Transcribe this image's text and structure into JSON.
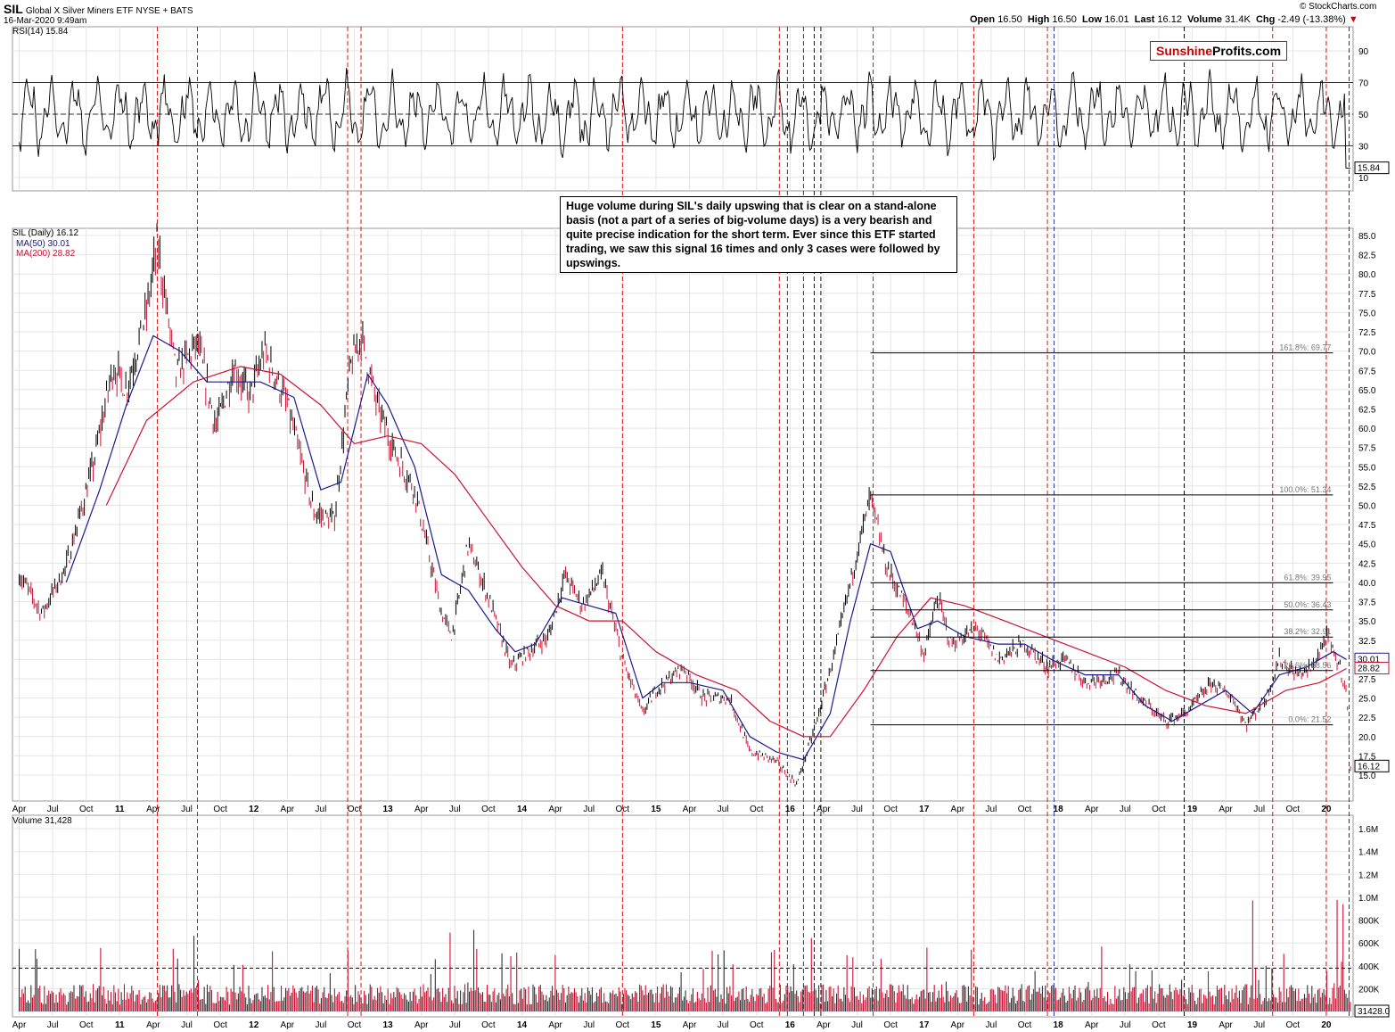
{
  "header": {
    "symbol": "SIL",
    "name": "Global X Silver Miners ETF",
    "exchange": "NYSE + BATS",
    "date": "16-Mar-2020 9:49am",
    "copyright": "© StockCharts.com",
    "quote": {
      "open_label": "Open",
      "open": "16.50",
      "high_label": "High",
      "high": "16.50",
      "low_label": "Low",
      "low": "16.01",
      "last_label": "Last",
      "last": "16.12",
      "volume_label": "Volume",
      "volume": "31.4K",
      "chg_label": "Chg",
      "chg": "-2.49 (-13.38%)"
    }
  },
  "brand": {
    "part1": "Sunshine",
    "part2": "Profits.com"
  },
  "annotation": "Huge volume during SIL's daily upswing that is clear on a stand-alone basis (not a part of a series of big-volume days) is a very bearish and quite precise indication for the short term. Ever since this ETF started trading, we saw this signal 16 times and only 3 cases were followed by upswings.",
  "colors": {
    "price": "#000000",
    "ma50": "#1a1a8c",
    "ma200": "#cc1133",
    "volume": "#cc1133",
    "signal_red": "#cc0000",
    "signal_blue": "#1a1a8c",
    "signal_black": "#000000",
    "grid": "#e4e4e4"
  },
  "chart_data": [
    {
      "type": "line",
      "title": "RSI(14) 15.84",
      "series": [
        {
          "name": "RSI(14)",
          "last": 15.84
        }
      ],
      "y_ticks": [
        90,
        70,
        50,
        30,
        10
      ],
      "reference_lines": [
        70,
        50,
        30
      ],
      "last_value_label": "15.84"
    },
    {
      "type": "line",
      "title": "SIL (Daily) 16.12",
      "series": [
        {
          "name": "SIL (Daily)",
          "last": 16.12
        },
        {
          "name": "MA(50)",
          "last": 30.01,
          "label": "MA(50) 30.01"
        },
        {
          "name": "MA(200)",
          "last": 28.82,
          "label": "MA(200) 28.82"
        }
      ],
      "x_ticks": [
        "Apr",
        "Jul",
        "Oct",
        "11",
        "Apr",
        "Jul",
        "Oct",
        "12",
        "Apr",
        "Jul",
        "Oct",
        "13",
        "Apr",
        "Jul",
        "Oct",
        "14",
        "Apr",
        "Jul",
        "Oct",
        "15",
        "Apr",
        "Jul",
        "Oct",
        "16",
        "Apr",
        "Jul",
        "Oct",
        "17",
        "Apr",
        "Jul",
        "Oct",
        "18",
        "Apr",
        "Jul",
        "Oct",
        "19",
        "Apr",
        "Jul",
        "Oct",
        "20"
      ],
      "y_ticks": [
        "85.0",
        "82.5",
        "80.0",
        "77.5",
        "75.0",
        "72.5",
        "70.0",
        "67.5",
        "65.0",
        "62.5",
        "60.0",
        "57.5",
        "55.0",
        "52.5",
        "50.0",
        "47.5",
        "45.0",
        "42.5",
        "40.0",
        "37.5",
        "35.0",
        "32.5",
        "30.0",
        "27.5",
        "25.0",
        "22.5",
        "20.0",
        "17.5",
        "15.0"
      ],
      "price_path": [
        [
          2010.25,
          41
        ],
        [
          2010.42,
          36
        ],
        [
          2010.6,
          42
        ],
        [
          2010.8,
          55
        ],
        [
          2010.95,
          68
        ],
        [
          2011.05,
          65
        ],
        [
          2011.2,
          75
        ],
        [
          2011.28,
          84
        ],
        [
          2011.42,
          67
        ],
        [
          2011.58,
          71
        ],
        [
          2011.72,
          60
        ],
        [
          2011.85,
          68
        ],
        [
          2011.97,
          64
        ],
        [
          2012.08,
          70
        ],
        [
          2012.25,
          63
        ],
        [
          2012.45,
          49
        ],
        [
          2012.6,
          48
        ],
        [
          2012.72,
          68
        ],
        [
          2012.8,
          72
        ],
        [
          2012.92,
          63
        ],
        [
          2013.05,
          57
        ],
        [
          2013.2,
          52
        ],
        [
          2013.4,
          36
        ],
        [
          2013.48,
          33
        ],
        [
          2013.6,
          45
        ],
        [
          2013.75,
          38
        ],
        [
          2013.92,
          29
        ],
        [
          2014.05,
          31
        ],
        [
          2014.2,
          33
        ],
        [
          2014.32,
          41
        ],
        [
          2014.45,
          37
        ],
        [
          2014.6,
          41
        ],
        [
          2014.75,
          30
        ],
        [
          2014.9,
          23
        ],
        [
          2015.0,
          26
        ],
        [
          2015.2,
          29
        ],
        [
          2015.35,
          25
        ],
        [
          2015.55,
          25
        ],
        [
          2015.7,
          18
        ],
        [
          2015.88,
          17
        ],
        [
          2016.05,
          13.8
        ],
        [
          2016.2,
          22
        ],
        [
          2016.35,
          32
        ],
        [
          2016.5,
          44
        ],
        [
          2016.6,
          51
        ],
        [
          2016.72,
          42
        ],
        [
          2016.92,
          35
        ],
        [
          2017.0,
          30.5
        ],
        [
          2017.1,
          38
        ],
        [
          2017.2,
          32
        ],
        [
          2017.4,
          34
        ],
        [
          2017.55,
          30
        ],
        [
          2017.75,
          32
        ],
        [
          2017.92,
          29
        ],
        [
          2018.05,
          30
        ],
        [
          2018.2,
          27
        ],
        [
          2018.45,
          28
        ],
        [
          2018.6,
          25
        ],
        [
          2018.8,
          22
        ],
        [
          2018.95,
          23
        ],
        [
          2019.15,
          27
        ],
        [
          2019.3,
          25
        ],
        [
          2019.4,
          21.5
        ],
        [
          2019.55,
          25
        ],
        [
          2019.65,
          30
        ],
        [
          2019.78,
          28
        ],
        [
          2019.9,
          29
        ],
        [
          2020.0,
          33
        ],
        [
          2020.1,
          29
        ],
        [
          2020.15,
          26
        ],
        [
          2020.18,
          16.12
        ]
      ],
      "ma50_path": [
        [
          2010.6,
          40
        ],
        [
          2010.85,
          52
        ],
        [
          2011.05,
          63
        ],
        [
          2011.25,
          72
        ],
        [
          2011.45,
          70
        ],
        [
          2011.65,
          66
        ],
        [
          2011.85,
          66
        ],
        [
          2012.05,
          66
        ],
        [
          2012.3,
          64
        ],
        [
          2012.5,
          52
        ],
        [
          2012.65,
          53
        ],
        [
          2012.85,
          67
        ],
        [
          2013.0,
          63
        ],
        [
          2013.2,
          55
        ],
        [
          2013.4,
          41
        ],
        [
          2013.6,
          39
        ],
        [
          2013.8,
          34
        ],
        [
          2013.95,
          31
        ],
        [
          2014.1,
          32
        ],
        [
          2014.3,
          38
        ],
        [
          2014.5,
          37
        ],
        [
          2014.7,
          36
        ],
        [
          2014.9,
          25
        ],
        [
          2015.05,
          27
        ],
        [
          2015.25,
          27
        ],
        [
          2015.5,
          26
        ],
        [
          2015.7,
          20
        ],
        [
          2015.9,
          18
        ],
        [
          2016.1,
          17
        ],
        [
          2016.3,
          23
        ],
        [
          2016.45,
          35
        ],
        [
          2016.6,
          45
        ],
        [
          2016.75,
          44
        ],
        [
          2016.95,
          34
        ],
        [
          2017.1,
          35
        ],
        [
          2017.3,
          33
        ],
        [
          2017.55,
          32
        ],
        [
          2017.75,
          32
        ],
        [
          2017.95,
          30
        ],
        [
          2018.2,
          28
        ],
        [
          2018.45,
          28
        ],
        [
          2018.65,
          24
        ],
        [
          2018.85,
          22
        ],
        [
          2019.05,
          24
        ],
        [
          2019.25,
          26
        ],
        [
          2019.45,
          23
        ],
        [
          2019.65,
          28
        ],
        [
          2019.85,
          29
        ],
        [
          2020.05,
          31
        ],
        [
          2020.15,
          30.01
        ]
      ],
      "ma200_path": [
        [
          2010.9,
          50
        ],
        [
          2011.2,
          61
        ],
        [
          2011.55,
          66
        ],
        [
          2011.9,
          68
        ],
        [
          2012.2,
          67
        ],
        [
          2012.5,
          63
        ],
        [
          2012.75,
          58
        ],
        [
          2013.0,
          59
        ],
        [
          2013.25,
          58
        ],
        [
          2013.5,
          54
        ],
        [
          2013.75,
          48
        ],
        [
          2014.0,
          42
        ],
        [
          2014.25,
          37
        ],
        [
          2014.5,
          35
        ],
        [
          2014.75,
          35
        ],
        [
          2015.0,
          31
        ],
        [
          2015.3,
          28
        ],
        [
          2015.6,
          26
        ],
        [
          2015.85,
          22
        ],
        [
          2016.1,
          20
        ],
        [
          2016.3,
          20
        ],
        [
          2016.55,
          26
        ],
        [
          2016.8,
          33
        ],
        [
          2017.05,
          38
        ],
        [
          2017.3,
          37
        ],
        [
          2017.6,
          35
        ],
        [
          2017.9,
          33
        ],
        [
          2018.2,
          31
        ],
        [
          2018.5,
          29
        ],
        [
          2018.8,
          26
        ],
        [
          2019.1,
          24
        ],
        [
          2019.4,
          23
        ],
        [
          2019.7,
          26
        ],
        [
          2019.95,
          27
        ],
        [
          2020.15,
          28.82
        ]
      ],
      "fibonacci": [
        {
          "label": "161.8%: 69.77",
          "value": 69.77
        },
        {
          "label": "100.0%: 51.34",
          "value": 51.34
        },
        {
          "label": "61.8%: 39.95",
          "value": 39.95
        },
        {
          "label": "50.0%: 36.43",
          "value": 36.43
        },
        {
          "label": "38.2%: 32.91",
          "value": 32.91
        },
        {
          "label": "23.6%: 28.56",
          "value": 28.56
        },
        {
          "label": "0.0%: 21.52",
          "value": 21.52
        }
      ],
      "last_value_labels": [
        "30.01",
        "28.82",
        "16.12"
      ]
    },
    {
      "type": "bar",
      "title": "Volume 31,428",
      "series": [
        {
          "name": "Volume",
          "last": 31428
        }
      ],
      "y_ticks": [
        "1.6M",
        "1.4M",
        "1.2M",
        "1.0M",
        "800K",
        "600K",
        "400K",
        "200K"
      ],
      "reference_line": 380000,
      "last_value_label": "31428.0"
    }
  ],
  "signals": {
    "red": [
      2011.28,
      2011.58,
      2012.7,
      2012.8,
      2014.75,
      2015.92,
      2016.62,
      2017.37,
      2017.92,
      2019.6,
      2020.0
    ],
    "blue": [
      2015.98,
      2016.1,
      2017.97,
      2018.94,
      2020.17
    ],
    "black": [
      2016.18,
      2016.23,
      2018.94
    ]
  }
}
